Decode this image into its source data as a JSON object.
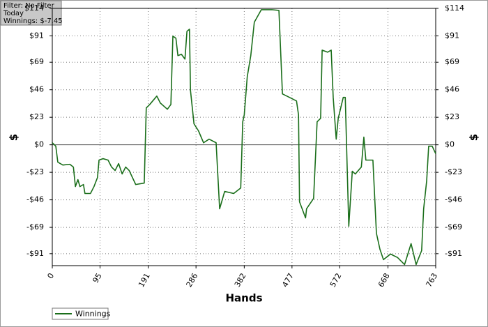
{
  "chart_data": {
    "type": "line",
    "annotations": [
      "Filter: No Filter",
      "Today",
      "Winnings: $-7.45"
    ],
    "x_label": "Hands",
    "y_label": "$",
    "x": [
      0,
      7,
      11,
      21,
      35,
      42,
      46,
      51,
      55,
      62,
      65,
      76,
      83,
      90,
      93,
      101,
      111,
      118,
      125,
      132,
      139,
      146,
      153,
      166,
      183,
      187,
      194,
      208,
      215,
      229,
      236,
      240,
      246,
      250,
      257,
      264,
      268,
      273,
      275,
      282,
      291,
      301,
      312,
      326,
      333,
      343,
      361,
      375,
      379,
      382,
      388,
      395,
      402,
      416,
      437,
      451,
      458,
      472,
      486,
      490,
      492,
      504,
      506,
      520,
      527,
      534,
      537,
      548,
      555,
      559,
      565,
      569,
      579,
      583,
      590,
      597,
      603,
      615,
      620,
      624,
      638,
      645,
      652,
      659,
      673,
      687,
      701,
      714,
      724,
      735,
      739,
      745,
      749,
      756,
      763
    ],
    "series": [
      {
        "name": "Winnings",
        "color": "#1a6e1a",
        "values": [
          1.7,
          -1.2,
          -14.5,
          -16.9,
          -16.3,
          -18.6,
          -34.9,
          -29.1,
          -34.9,
          -33.2,
          -40.7,
          -40.7,
          -34.9,
          -27.3,
          -12.8,
          -11.6,
          -12.8,
          -18.6,
          -21.5,
          -15.7,
          -24.4,
          -18.6,
          -21.5,
          -33.2,
          -32.0,
          30.8,
          33.7,
          40.7,
          34.9,
          29.7,
          33.7,
          90.8,
          89.0,
          74.5,
          75.6,
          71.6,
          94.8,
          96.6,
          45.4,
          17.5,
          11.6,
          1.7,
          4.7,
          1.7,
          -53.5,
          -39.0,
          -40.7,
          -36.1,
          19.2,
          25.0,
          57.0,
          74.5,
          102.4,
          112.9,
          112.9,
          112.3,
          42.5,
          39.6,
          36.6,
          25.0,
          -47.7,
          -61.1,
          -53.5,
          -44.8,
          19.2,
          22.1,
          79.1,
          77.4,
          79.1,
          39.6,
          4.7,
          22.1,
          39.6,
          39.6,
          -68.1,
          -22.1,
          -24.4,
          -18.6,
          6.4,
          -12.8,
          -12.8,
          -73.9,
          -87.3,
          -96.0,
          -91.3,
          -94.2,
          -100.1,
          -82.6,
          -100.1,
          -88.4,
          -53.5,
          -30.2,
          -1.2,
          -1.2,
          -7.45
        ]
      }
    ],
    "xlim": [
      0,
      763
    ],
    "xticks": [
      0,
      95,
      191,
      286,
      382,
      477,
      572,
      668,
      763
    ],
    "ylim": [
      -101,
      114
    ],
    "yticks": [
      {
        "value": 114,
        "label": "$114"
      },
      {
        "value": 91,
        "label": "$91"
      },
      {
        "value": 69,
        "label": "$69"
      },
      {
        "value": 46,
        "label": "$46"
      },
      {
        "value": 23,
        "label": "$23"
      },
      {
        "value": 0,
        "label": "$0"
      },
      {
        "value": -23,
        "label": "-$23"
      },
      {
        "value": -46,
        "label": "-$46"
      },
      {
        "value": -69,
        "label": "-$69"
      },
      {
        "value": -91,
        "label": "-$91"
      }
    ],
    "grid": true,
    "legend": "bottom-left"
  }
}
